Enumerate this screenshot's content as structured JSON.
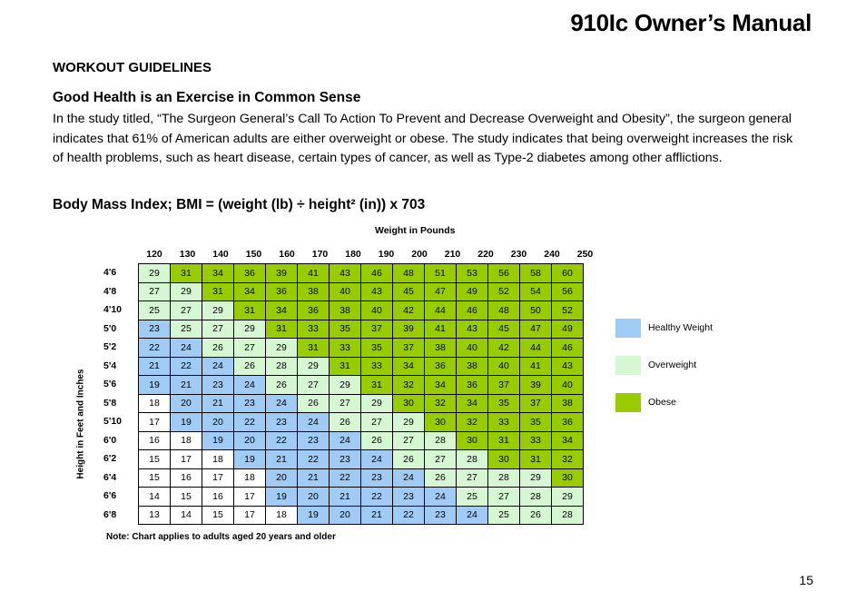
{
  "document": {
    "title": "910Ic Owner’s Manual",
    "page_number": "15"
  },
  "section": {
    "heading": "WORKOUT GUIDELINES",
    "subheading": "Good Health is an Exercise in Common Sense",
    "intro": "In the study titled, “The Surgeon General’s Call To Action To Prevent and Decrease Overweight and Obesity”, the surgeon general indicates that 61% of American adults are either overweight or obese. The study indicates that being overweight increases the risk of health problems, such as heart disease, certain types of cancer, as well as Type-2 diabetes among other afflictions.",
    "bmi_formula": "Body Mass Index; BMI = (weight (lb) ÷ height² (in)) x 703"
  },
  "bmi_chart": {
    "x_title": "Weight in Pounds",
    "y_title": "Height in Feet and Inches",
    "weights": [
      "120",
      "130",
      "140",
      "150",
      "160",
      "170",
      "180",
      "190",
      "200",
      "210",
      "220",
      "230",
      "240",
      "250"
    ],
    "heights": [
      "4'6",
      "4'8",
      "4'10",
      "5'0",
      "5'2",
      "5'4",
      "5'6",
      "5'8",
      "5'10",
      "6'0",
      "6'2",
      "6'4",
      "6'6",
      "6'8"
    ],
    "values": [
      [
        29,
        31,
        34,
        36,
        39,
        41,
        43,
        46,
        48,
        51,
        53,
        56,
        58,
        60
      ],
      [
        27,
        29,
        31,
        34,
        36,
        38,
        40,
        43,
        45,
        47,
        49,
        52,
        54,
        56
      ],
      [
        25,
        27,
        29,
        31,
        34,
        36,
        38,
        40,
        42,
        44,
        46,
        48,
        50,
        52
      ],
      [
        23,
        25,
        27,
        29,
        31,
        33,
        35,
        37,
        39,
        41,
        43,
        45,
        47,
        49
      ],
      [
        22,
        24,
        26,
        27,
        29,
        31,
        33,
        35,
        37,
        38,
        40,
        42,
        44,
        46
      ],
      [
        21,
        22,
        24,
        26,
        28,
        29,
        31,
        33,
        34,
        36,
        38,
        40,
        41,
        43
      ],
      [
        19,
        21,
        23,
        24,
        26,
        27,
        29,
        31,
        32,
        34,
        36,
        37,
        39,
        40
      ],
      [
        18,
        20,
        21,
        23,
        24,
        26,
        27,
        29,
        30,
        32,
        34,
        35,
        37,
        38
      ],
      [
        17,
        19,
        20,
        22,
        23,
        24,
        26,
        27,
        29,
        30,
        32,
        33,
        35,
        36
      ],
      [
        16,
        18,
        19,
        20,
        22,
        23,
        24,
        26,
        27,
        28,
        30,
        31,
        33,
        34
      ],
      [
        15,
        17,
        18,
        19,
        21,
        22,
        23,
        24,
        26,
        27,
        28,
        30,
        31,
        32
      ],
      [
        15,
        16,
        17,
        18,
        20,
        21,
        22,
        23,
        24,
        26,
        27,
        28,
        29,
        30
      ],
      [
        14,
        15,
        16,
        17,
        19,
        20,
        21,
        22,
        23,
        24,
        25,
        27,
        28,
        29
      ],
      [
        13,
        14,
        15,
        17,
        18,
        19,
        20,
        21,
        22,
        23,
        24,
        25,
        26,
        28
      ]
    ],
    "categories": [
      [
        "over",
        "obese",
        "obese",
        "obese",
        "obese",
        "obese",
        "obese",
        "obese",
        "obese",
        "obese",
        "obese",
        "obese",
        "obese",
        "obese"
      ],
      [
        "over",
        "over",
        "obese",
        "obese",
        "obese",
        "obese",
        "obese",
        "obese",
        "obese",
        "obese",
        "obese",
        "obese",
        "obese",
        "obese"
      ],
      [
        "over",
        "over",
        "over",
        "obese",
        "obese",
        "obese",
        "obese",
        "obese",
        "obese",
        "obese",
        "obese",
        "obese",
        "obese",
        "obese"
      ],
      [
        "healthy",
        "over",
        "over",
        "over",
        "obese",
        "obese",
        "obese",
        "obese",
        "obese",
        "obese",
        "obese",
        "obese",
        "obese",
        "obese"
      ],
      [
        "healthy",
        "healthy",
        "over",
        "over",
        "over",
        "obese",
        "obese",
        "obese",
        "obese",
        "obese",
        "obese",
        "obese",
        "obese",
        "obese"
      ],
      [
        "healthy",
        "healthy",
        "healthy",
        "over",
        "over",
        "over",
        "obese",
        "obese",
        "obese",
        "obese",
        "obese",
        "obese",
        "obese",
        "obese"
      ],
      [
        "healthy",
        "healthy",
        "healthy",
        "healthy",
        "over",
        "over",
        "over",
        "obese",
        "obese",
        "obese",
        "obese",
        "obese",
        "obese",
        "obese"
      ],
      [
        "under",
        "healthy",
        "healthy",
        "healthy",
        "healthy",
        "over",
        "over",
        "over",
        "obese",
        "obese",
        "obese",
        "obese",
        "obese",
        "obese"
      ],
      [
        "under",
        "healthy",
        "healthy",
        "healthy",
        "healthy",
        "healthy",
        "over",
        "over",
        "over",
        "obese",
        "obese",
        "obese",
        "obese",
        "obese"
      ],
      [
        "under",
        "under",
        "healthy",
        "healthy",
        "healthy",
        "healthy",
        "healthy",
        "over",
        "over",
        "over",
        "obese",
        "obese",
        "obese",
        "obese"
      ],
      [
        "under",
        "under",
        "under",
        "healthy",
        "healthy",
        "healthy",
        "healthy",
        "healthy",
        "over",
        "over",
        "over",
        "obese",
        "obese",
        "obese"
      ],
      [
        "under",
        "under",
        "under",
        "under",
        "healthy",
        "healthy",
        "healthy",
        "healthy",
        "healthy",
        "over",
        "over",
        "over",
        "over",
        "obese"
      ],
      [
        "under",
        "under",
        "under",
        "under",
        "healthy",
        "healthy",
        "healthy",
        "healthy",
        "healthy",
        "healthy",
        "over",
        "over",
        "over",
        "over"
      ],
      [
        "under",
        "under",
        "under",
        "under",
        "under",
        "healthy",
        "healthy",
        "healthy",
        "healthy",
        "healthy",
        "healthy",
        "over",
        "over",
        "over"
      ]
    ],
    "legend": [
      {
        "label": "Healthy Weight",
        "color": "#9fcbf5"
      },
      {
        "label": "Overweight",
        "color": "#d5f7d1"
      },
      {
        "label": "Obese",
        "color": "#99cc00"
      }
    ],
    "note": "Note: Chart applies to adults aged 20 years and older"
  }
}
